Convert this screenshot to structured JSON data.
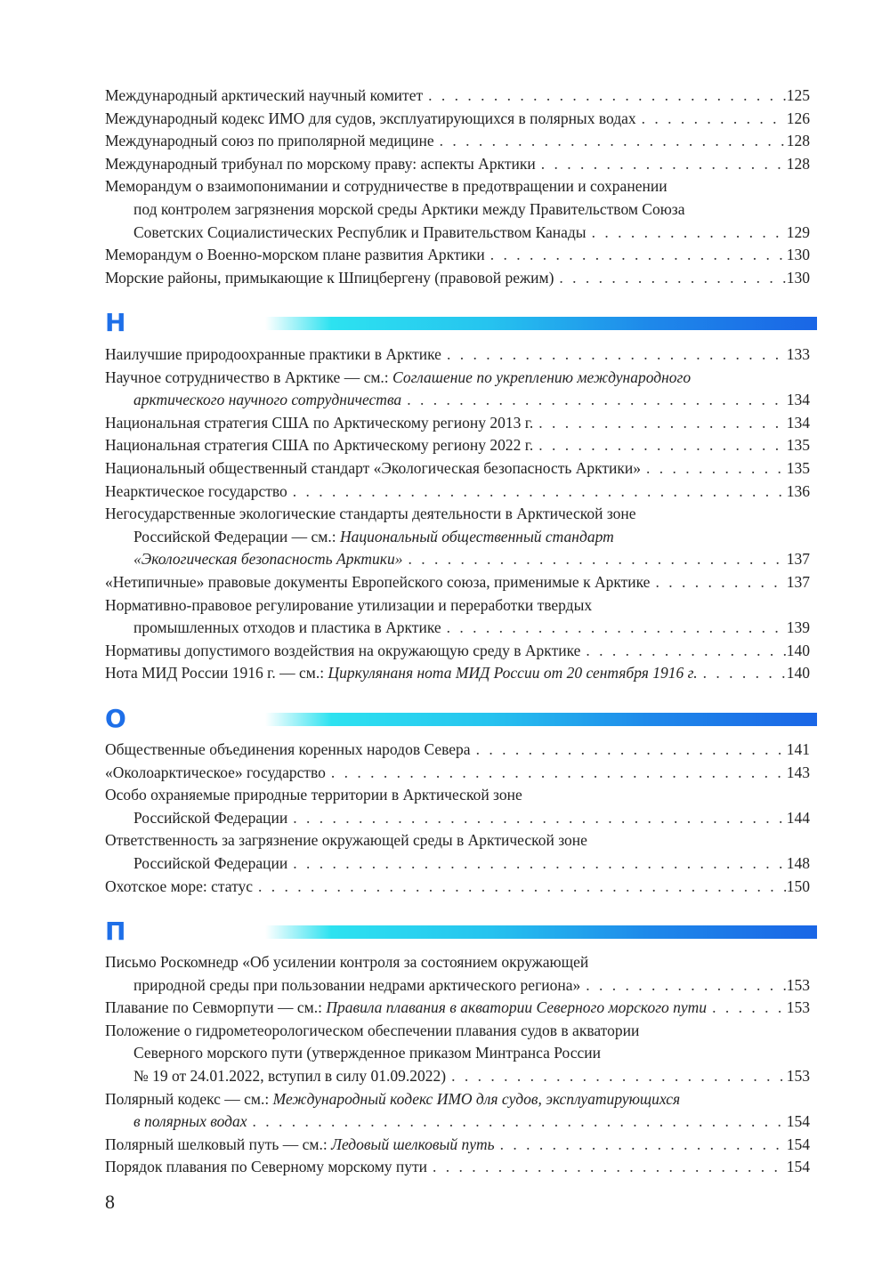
{
  "colors": {
    "accent": "#1e6fe8",
    "bar_start": "#2de2f0",
    "bar_end": "#1a66e6"
  },
  "sections": [
    {
      "letter": "",
      "entries": [
        {
          "lines": [
            [
              {
                "t": "Международный арктический научный комитет"
              }
            ]
          ],
          "page": "125"
        },
        {
          "lines": [
            [
              {
                "t": "Международный кодекс ИМО для судов, эксплуатирующихся в полярных водах"
              }
            ]
          ],
          "page": "126"
        },
        {
          "lines": [
            [
              {
                "t": "Международный союз по приполярной медицине"
              }
            ]
          ],
          "page": "128"
        },
        {
          "lines": [
            [
              {
                "t": "Международный трибунал по морскому праву: аспекты Арктики"
              }
            ]
          ],
          "page": "128"
        },
        {
          "lines": [
            [
              {
                "t": "Меморандум о взаимопонимании и сотрудничестве в предотвращении и сохранении"
              }
            ],
            [
              {
                "t": "под контролем загрязнения морской среды Арктики между Правительством Союза"
              }
            ],
            [
              {
                "t": "Советских Социалистических Республик и Правительством Канады"
              }
            ]
          ],
          "page": "129"
        },
        {
          "lines": [
            [
              {
                "t": "Меморандум о Военно-морском плане развития Арктики"
              }
            ]
          ],
          "page": "130"
        },
        {
          "lines": [
            [
              {
                "t": "Морские районы, примыкающие к Шпицбергену (правовой режим)"
              }
            ]
          ],
          "page": "130"
        }
      ]
    },
    {
      "letter": "Н",
      "entries": [
        {
          "lines": [
            [
              {
                "t": "Наилучшие природоохранные практики в Арктике"
              }
            ]
          ],
          "page": "133"
        },
        {
          "lines": [
            [
              {
                "t": "Научное сотрудничество в Арктике — см.: "
              },
              {
                "t": "Соглашение по укреплению международного",
                "i": true
              }
            ],
            [
              {
                "t": "арктического научного сотрудничества",
                "i": true
              }
            ]
          ],
          "page": "134"
        },
        {
          "lines": [
            [
              {
                "t": "Национальная стратегия США по Арктическому региону 2013 г."
              }
            ]
          ],
          "page": "134"
        },
        {
          "lines": [
            [
              {
                "t": "Национальная стратегия США по Арктическому региону 2022 г."
              }
            ]
          ],
          "page": "135"
        },
        {
          "lines": [
            [
              {
                "t": "Национальный общественный стандарт «Экологическая безопасность Арктики»"
              }
            ]
          ],
          "page": "135"
        },
        {
          "lines": [
            [
              {
                "t": "Неарктическое государство"
              }
            ]
          ],
          "page": "136"
        },
        {
          "lines": [
            [
              {
                "t": "Негосударственные экологические стандарты деятельности в Арктической зоне"
              }
            ],
            [
              {
                "t": "Российской Федерации — см.: "
              },
              {
                "t": "Национальный общественный стандарт",
                "i": true
              }
            ],
            [
              {
                "t": "«Экологическая безопасность Арктики»",
                "i": true
              }
            ]
          ],
          "page": "137"
        },
        {
          "lines": [
            [
              {
                "t": "«Нетипичные» правовые документы Европейского союза, применимые к Арктике"
              }
            ]
          ],
          "page": "137"
        },
        {
          "lines": [
            [
              {
                "t": "Нормативно-правовое регулирование утилизации и переработки твердых"
              }
            ],
            [
              {
                "t": "промышленных отходов и пластика в Арктике"
              }
            ]
          ],
          "page": "139"
        },
        {
          "lines": [
            [
              {
                "t": "Нормативы допустимого воздействия на окружающую среду в Арктике"
              }
            ]
          ],
          "page": "140"
        },
        {
          "lines": [
            [
              {
                "t": "Нота МИД России 1916 г. — см.: "
              },
              {
                "t": "Циркулянаня нота МИД России от 20 сентября 1916 г.",
                "i": true
              }
            ]
          ],
          "page": "140"
        }
      ]
    },
    {
      "letter": "О",
      "entries": [
        {
          "lines": [
            [
              {
                "t": "Общественные объединения коренных народов Севера"
              }
            ]
          ],
          "page": "141"
        },
        {
          "lines": [
            [
              {
                "t": "«Околоарктическое» государство"
              }
            ]
          ],
          "page": "143"
        },
        {
          "lines": [
            [
              {
                "t": "Особо охраняемые природные территории в Арктической зоне"
              }
            ],
            [
              {
                "t": "Российской Федерации"
              }
            ]
          ],
          "page": "144"
        },
        {
          "lines": [
            [
              {
                "t": "Ответственность за загрязнение окружающей среды в Арктической зоне"
              }
            ],
            [
              {
                "t": "Российской Федерации"
              }
            ]
          ],
          "page": "148"
        },
        {
          "lines": [
            [
              {
                "t": "Охотское море: статус"
              }
            ]
          ],
          "page": "150"
        }
      ]
    },
    {
      "letter": "П",
      "entries": [
        {
          "lines": [
            [
              {
                "t": "Письмо Роскомнедр «Об усилении контроля за состоянием окружающей"
              }
            ],
            [
              {
                "t": "природной среды при пользовании недрами арктического региона»"
              }
            ]
          ],
          "page": "153"
        },
        {
          "lines": [
            [
              {
                "t": "Плавание по Севморпути — см.: "
              },
              {
                "t": "Правила плавания в акватории Северного морского пути",
                "i": true
              }
            ]
          ],
          "page": "153"
        },
        {
          "lines": [
            [
              {
                "t": "Положение о гидрометеорологическом обеспечении плавания судов в акватории"
              }
            ],
            [
              {
                "t": "Северного морского пути (утвержденное приказом Минтранса России"
              }
            ],
            [
              {
                "t": "№ 19 от 24.01.2022, вступил в силу 01.09.2022)"
              }
            ]
          ],
          "page": "153"
        },
        {
          "lines": [
            [
              {
                "t": "Полярный кодекс — см.: "
              },
              {
                "t": "Международный кодекс ИМО для судов, эксплуатирующихся",
                "i": true
              }
            ],
            [
              {
                "t": "в полярных водах",
                "i": true
              }
            ]
          ],
          "page": "154"
        },
        {
          "lines": [
            [
              {
                "t": "Полярный шелковый путь — см.: "
              },
              {
                "t": "Ледовый шелковый путь",
                "i": true
              }
            ]
          ],
          "page": "154"
        },
        {
          "lines": [
            [
              {
                "t": "Порядок плавания по Северному морскому пути"
              }
            ]
          ],
          "page": "154"
        }
      ]
    }
  ],
  "page_number": "8"
}
